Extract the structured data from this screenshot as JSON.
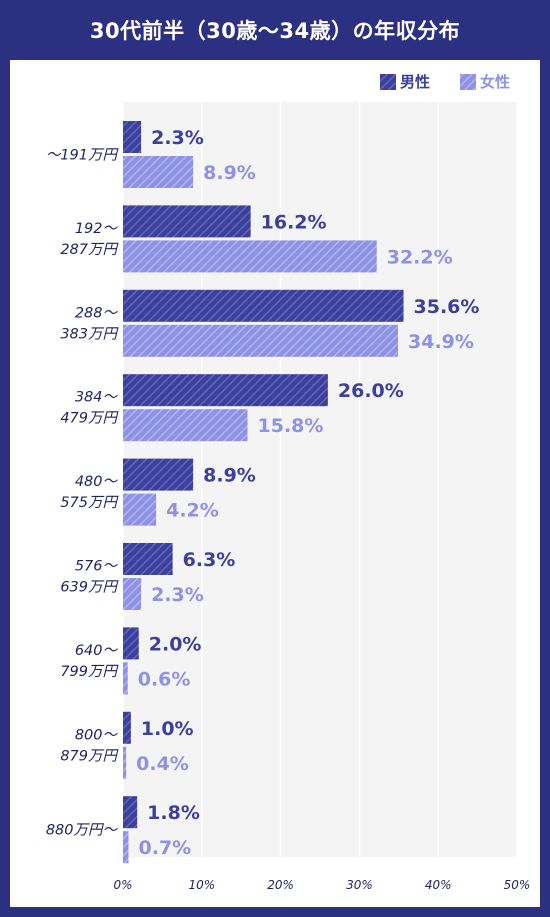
{
  "title": "30代前半（30歳〜34歳）の年収分布",
  "colors": {
    "frame": "#2b3080",
    "male": "#3b3f9e",
    "female": "#8e92e6",
    "plot_bg": "#f4f4f4",
    "grid": "#ffffff",
    "label_text": "#1f2466"
  },
  "chart_data": {
    "type": "bar",
    "orientation": "horizontal",
    "title": "30代前半（30歳〜34歳）の年収分布",
    "categories": [
      [
        "〜191万円"
      ],
      [
        "192〜",
        "287万円"
      ],
      [
        "288〜",
        "383万円"
      ],
      [
        "384〜",
        "479万円"
      ],
      [
        "480〜",
        "575万円"
      ],
      [
        "576〜",
        "639万円"
      ],
      [
        "640〜",
        "799万円"
      ],
      [
        "800〜",
        "879万円"
      ],
      [
        "880万円〜"
      ]
    ],
    "series": [
      {
        "name": "男性",
        "values": [
          2.3,
          16.2,
          35.6,
          26.0,
          8.9,
          6.3,
          2.0,
          1.0,
          1.8
        ]
      },
      {
        "name": "女性",
        "values": [
          8.9,
          32.2,
          34.9,
          15.8,
          4.2,
          2.3,
          0.6,
          0.4,
          0.7
        ]
      }
    ],
    "value_suffix": "%",
    "xlim": [
      0,
      50
    ],
    "xticks": [
      "0%",
      "10%",
      "20%",
      "30%",
      "40%",
      "50%"
    ],
    "grid": true,
    "legend_position": "top-right",
    "bar_pattern": "diagonal-stripes"
  }
}
